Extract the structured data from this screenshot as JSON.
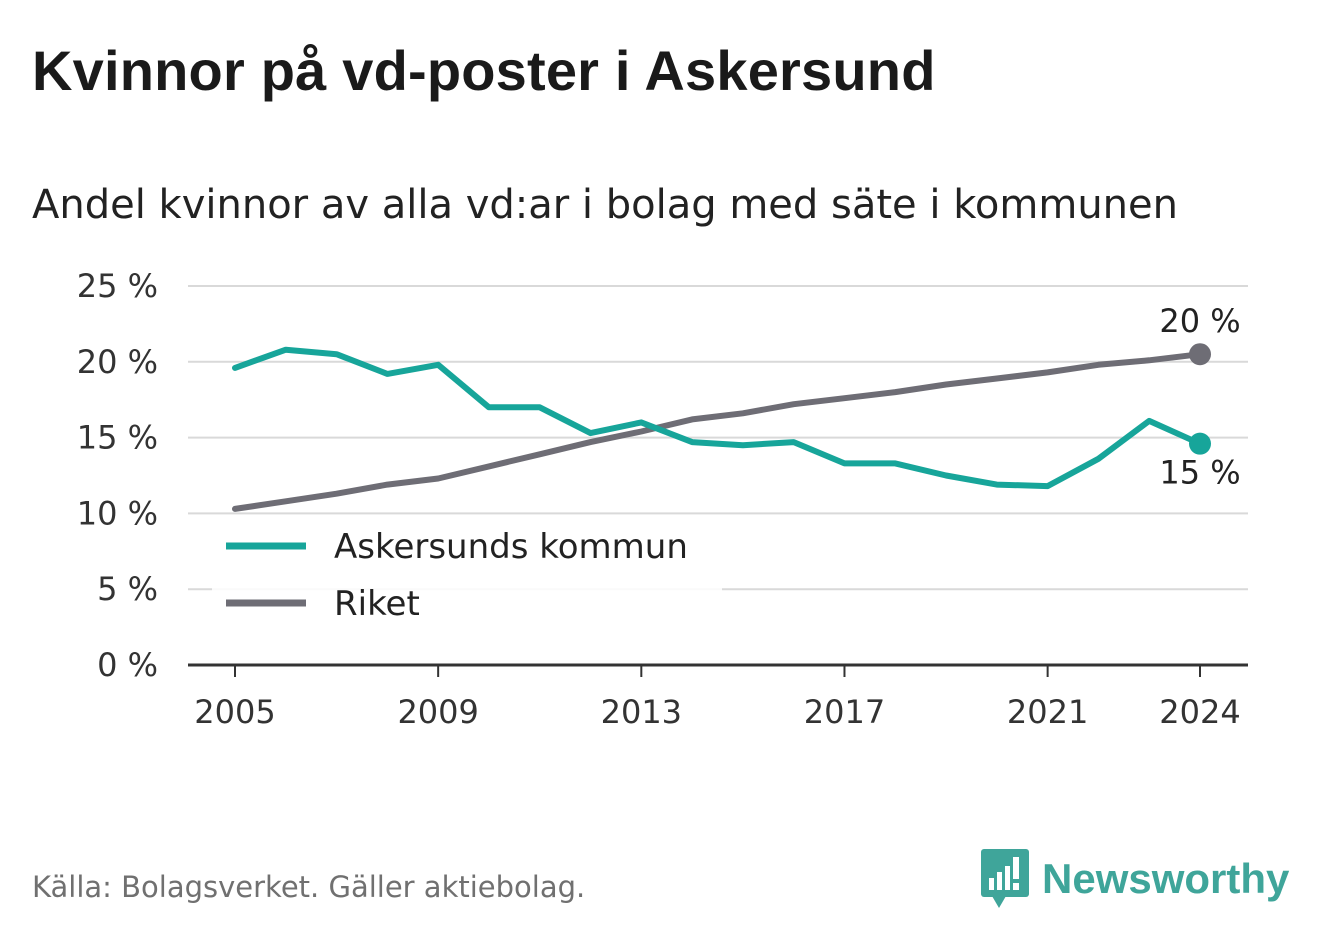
{
  "title": "Kvinnor på vd-poster i Askersund",
  "subtitle": "Andel kvinnor av alla vd:ar i bolag med säte i kommunen",
  "source": "Källa: Bolagsverket. Gäller aktiebolag.",
  "brand": {
    "name": "Newsworthy",
    "icon": "newsworthy-logo-icon",
    "color": "#3fa59a"
  },
  "chart_data": {
    "type": "line",
    "x": [
      2005,
      2006,
      2007,
      2008,
      2009,
      2010,
      2011,
      2012,
      2013,
      2014,
      2015,
      2016,
      2017,
      2018,
      2019,
      2020,
      2021,
      2022,
      2023,
      2024
    ],
    "series": [
      {
        "name": "Askersunds kommun",
        "color": "#17a59a",
        "values": [
          19.6,
          20.8,
          20.5,
          19.2,
          19.8,
          17.0,
          17.0,
          15.3,
          16.0,
          14.7,
          14.5,
          14.7,
          13.3,
          13.3,
          12.5,
          11.9,
          11.8,
          13.6,
          16.1,
          14.6
        ],
        "end_label": "15 %"
      },
      {
        "name": "Riket",
        "color": "#6e6d75",
        "values": [
          10.3,
          10.8,
          11.3,
          11.9,
          12.3,
          13.1,
          13.9,
          14.7,
          15.4,
          16.2,
          16.6,
          17.2,
          17.6,
          18.0,
          18.5,
          18.9,
          19.3,
          19.8,
          20.1,
          20.5
        ],
        "end_label": "20 %"
      }
    ],
    "ylim": [
      0,
      25
    ],
    "yticks": [
      0,
      5,
      10,
      15,
      20,
      25
    ],
    "ytick_labels": [
      "0 %",
      "5 %",
      "10 %",
      "15 %",
      "20 %",
      "25 %"
    ],
    "xticks": [
      2005,
      2009,
      2013,
      2017,
      2021,
      2024
    ],
    "xtick_labels": [
      "2005",
      "2009",
      "2013",
      "2017",
      "2021",
      "2024"
    ],
    "grid": "horizontal",
    "legend_position": "lower-left",
    "xlabel": "",
    "ylabel": ""
  }
}
